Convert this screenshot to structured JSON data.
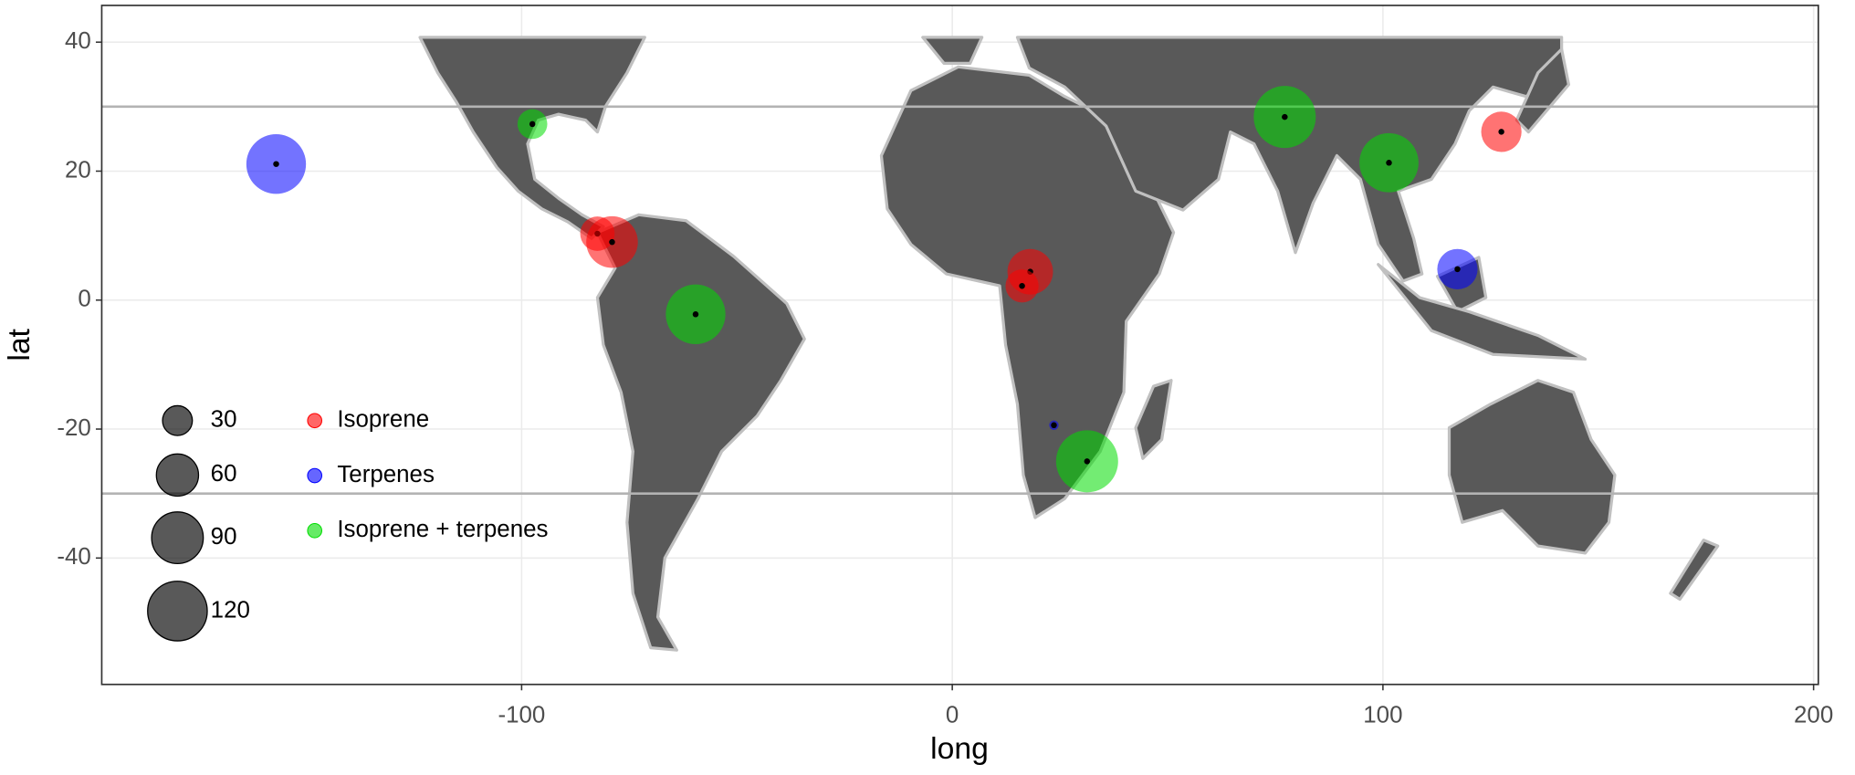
{
  "chart_data": {
    "type": "scatter",
    "x_label": "long",
    "y_label": "lat",
    "xlim": [
      -197.5,
      201.1
    ],
    "ylim": [
      -59.6,
      45.7
    ],
    "xticks": [
      -100,
      0,
      100,
      200
    ],
    "yticks": [
      -40,
      -20,
      0,
      20,
      40
    ],
    "grid": true,
    "reference_lines": [
      30,
      -30
    ],
    "series": [
      {
        "name": "Isoprene",
        "color": "#ff0000",
        "x": [
          -82.4,
          -79,
          18.1,
          16.2,
          127.5
        ],
        "y": [
          10.3,
          9,
          4.4,
          2.2,
          26.1
        ],
        "sizes": [
          40,
          90,
          70,
          37,
          55
        ]
      },
      {
        "name": "Terpenes",
        "color": "#0000ff",
        "x": [
          -157,
          23.6,
          117.3
        ],
        "y": [
          21.1,
          -19.4,
          4.8
        ],
        "sizes": [
          120,
          3,
          55
        ]
      },
      {
        "name": "Isoprene + terpenes",
        "color": "#00dd00",
        "x": [
          -97.5,
          -59.6,
          31.3,
          77.2,
          101.4
        ],
        "y": [
          27.3,
          -2.2,
          -25,
          28.4,
          21.3
        ],
        "sizes": [
          30,
          120,
          130,
          130,
          118
        ]
      }
    ],
    "size_legend": [
      30,
      60,
      90,
      120
    ]
  }
}
